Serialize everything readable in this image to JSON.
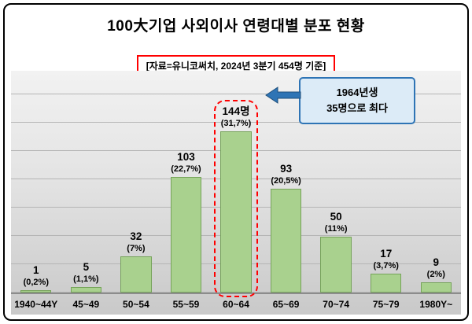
{
  "header": {
    "title": "100大기업 사외이사 연령대별 분포 현황",
    "subtitle": "[자료=유니코써치, 2024년 3분기 454명 기준]"
  },
  "callout": {
    "line1": "1964년생",
    "line2": "35명으로 최다"
  },
  "colors": {
    "bar_fill": "#a9d18e",
    "bar_edge": "#76a35a",
    "accent_red": "#ff0000",
    "callout_border": "#2e74b5",
    "callout_bg": "#dcebf7",
    "grid_line": "#b5b5b5",
    "axis_line": "#8c8c8c"
  },
  "chart_data": {
    "type": "bar",
    "title": "100大기업 사외이사 연령대별 분포 현황",
    "source_note": "[자료=유니코써치, 2024년 3분기 454명 기준]",
    "categories": [
      "1940~44Y",
      "45~49",
      "50~54",
      "55~59",
      "60~64",
      "65~69",
      "70~74",
      "75~79",
      "1980Y~"
    ],
    "values": [
      1,
      5,
      32,
      103,
      144,
      93,
      50,
      17,
      9
    ],
    "value_labels": [
      "1",
      "5",
      "32",
      "103",
      "144명",
      "93",
      "50",
      "17",
      "9"
    ],
    "percent_labels": [
      "(0,2%)",
      "(1,1%)",
      "(7%)",
      "(22,7%)",
      "(31,7%)",
      "(20,5%)",
      "(11%)",
      "(3,7%)",
      "(2%)"
    ],
    "highlight_index": 4,
    "annotation": "1964년생 35명으로 최다",
    "ylabel": "",
    "xlabel": "",
    "ylim": [
      0,
      150
    ],
    "grid": true,
    "legend": false
  }
}
